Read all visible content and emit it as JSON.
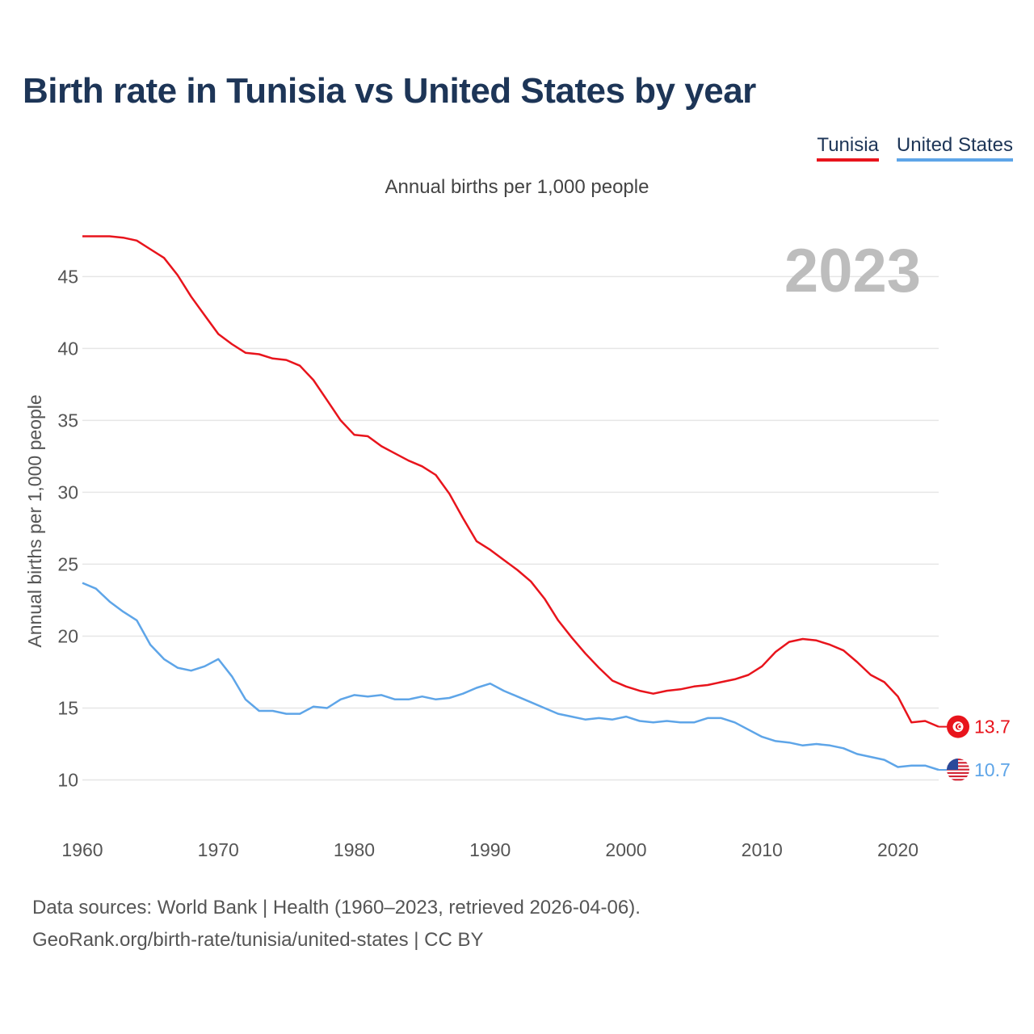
{
  "colors": {
    "title": "#1d3557",
    "tunisia": "#e8141c",
    "us": "#5ea5e8",
    "grid": "#e6e6e6",
    "year_label": "#bdbdbd"
  },
  "legend": [
    {
      "label": "Tunisia",
      "color": "#e8141c"
    },
    {
      "label": "United States",
      "color": "#5ea5e8"
    }
  ],
  "footer": {
    "line1": "Data sources: World Bank | Health (1960–2023, retrieved 2026-04-06).",
    "line2": "GeoRank.org/birth-rate/tunisia/united-states | CC BY"
  },
  "chart_data": {
    "type": "line",
    "title": "Birth rate in Tunisia vs United States by year",
    "subtitle": "Annual births per 1,000 people",
    "ylabel": "Annual births per 1,000 people",
    "xlabel": "",
    "year_label": "2023",
    "xlim": [
      1960,
      2023
    ],
    "ylim": [
      7.5,
      48.5
    ],
    "yticks": [
      10,
      15,
      20,
      25,
      30,
      35,
      40,
      45
    ],
    "xticks": [
      1960,
      1970,
      1980,
      1990,
      2000,
      2010,
      2020
    ],
    "grid": true,
    "x": [
      1960,
      1961,
      1962,
      1963,
      1964,
      1965,
      1966,
      1967,
      1968,
      1969,
      1970,
      1971,
      1972,
      1973,
      1974,
      1975,
      1976,
      1977,
      1978,
      1979,
      1980,
      1981,
      1982,
      1983,
      1984,
      1985,
      1986,
      1987,
      1988,
      1989,
      1990,
      1991,
      1992,
      1993,
      1994,
      1995,
      1996,
      1997,
      1998,
      1999,
      2000,
      2001,
      2002,
      2003,
      2004,
      2005,
      2006,
      2007,
      2008,
      2009,
      2010,
      2011,
      2012,
      2013,
      2014,
      2015,
      2016,
      2017,
      2018,
      2019,
      2020,
      2021,
      2022,
      2023
    ],
    "series": [
      {
        "name": "Tunisia",
        "end_label": "13.7",
        "values": [
          47.8,
          47.8,
          47.8,
          47.7,
          47.5,
          46.9,
          46.3,
          45.1,
          43.6,
          42.3,
          41.0,
          40.3,
          39.7,
          39.6,
          39.3,
          39.2,
          38.8,
          37.8,
          36.4,
          35.0,
          34.0,
          33.9,
          33.2,
          32.7,
          32.2,
          31.8,
          31.2,
          29.9,
          28.2,
          26.6,
          26.0,
          25.3,
          24.6,
          23.8,
          22.6,
          21.1,
          19.9,
          18.8,
          17.8,
          16.9,
          16.5,
          16.2,
          16.0,
          16.2,
          16.3,
          16.5,
          16.6,
          16.8,
          17.0,
          17.3,
          17.9,
          18.9,
          19.6,
          19.8,
          19.7,
          19.4,
          19.0,
          18.2,
          17.3,
          16.8,
          15.8,
          14.0,
          14.1,
          13.7
        ]
      },
      {
        "name": "United States",
        "end_label": "10.7",
        "values": [
          23.7,
          23.3,
          22.4,
          21.7,
          21.1,
          19.4,
          18.4,
          17.8,
          17.6,
          17.9,
          18.4,
          17.2,
          15.6,
          14.8,
          14.8,
          14.6,
          14.6,
          15.1,
          15.0,
          15.6,
          15.9,
          15.8,
          15.9,
          15.6,
          15.6,
          15.8,
          15.6,
          15.7,
          16.0,
          16.4,
          16.7,
          16.2,
          15.8,
          15.4,
          15.0,
          14.6,
          14.4,
          14.2,
          14.3,
          14.2,
          14.4,
          14.1,
          14.0,
          14.1,
          14.0,
          14.0,
          14.3,
          14.3,
          14.0,
          13.5,
          13.0,
          12.7,
          12.6,
          12.4,
          12.5,
          12.4,
          12.2,
          11.8,
          11.6,
          11.4,
          10.9,
          11.0,
          11.0,
          10.7
        ]
      }
    ]
  }
}
